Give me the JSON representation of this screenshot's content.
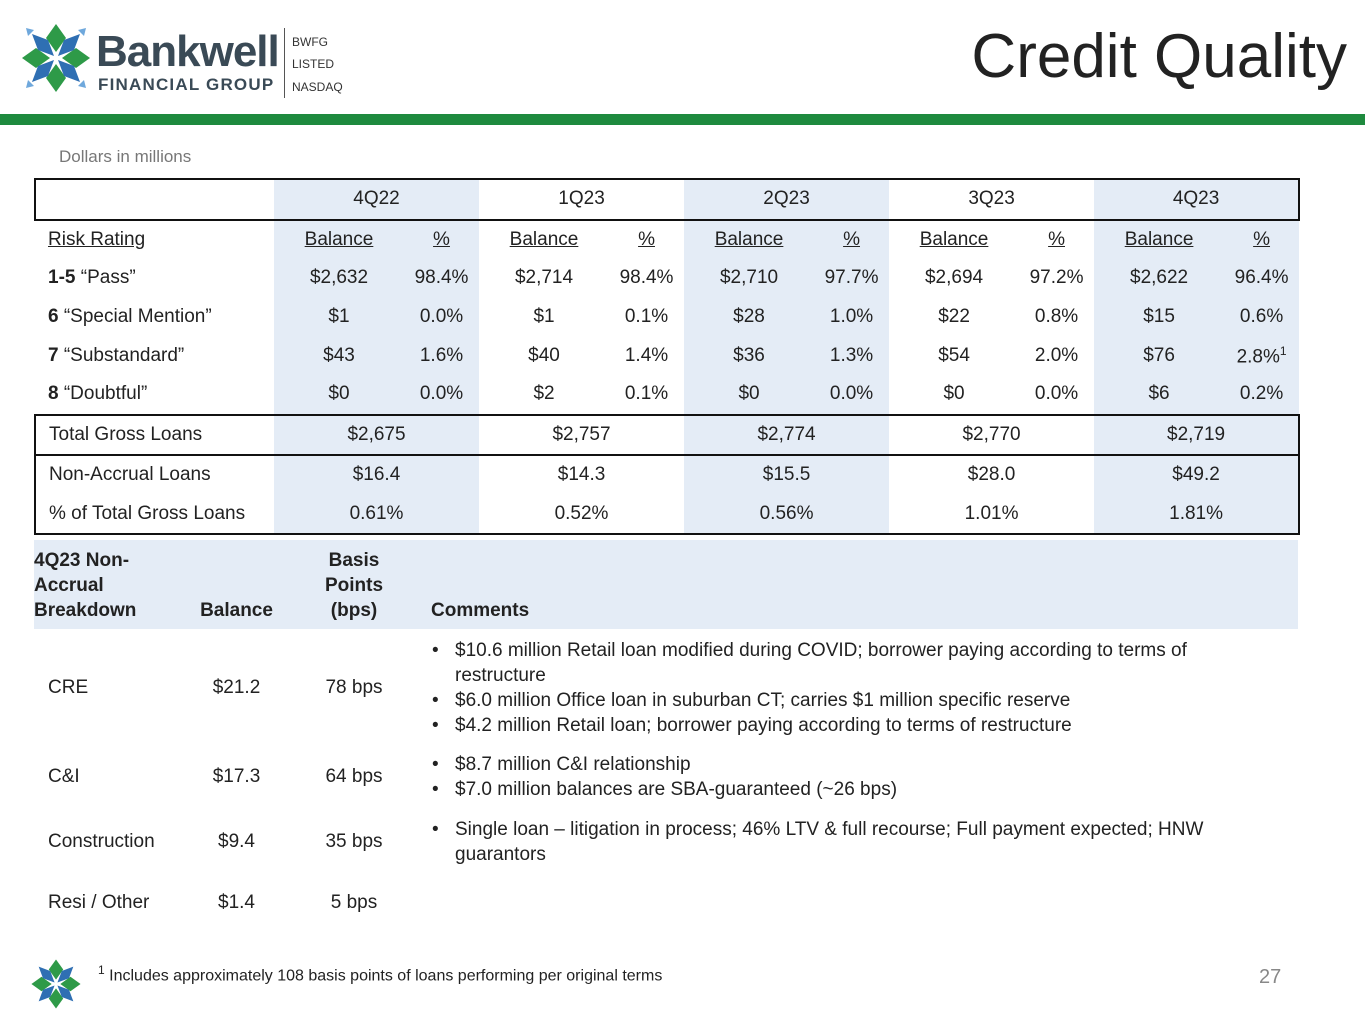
{
  "header": {
    "logo_name": "Bankwell",
    "logo_sub": "FINANCIAL GROUP",
    "ticker_lines": [
      "BWFG",
      "LISTED",
      "NASDAQ"
    ],
    "title": "Credit Quality"
  },
  "units_note": "Dollars in millions",
  "quality_table": {
    "quarters": [
      "4Q22",
      "1Q23",
      "2Q23",
      "3Q23",
      "4Q23"
    ],
    "subheader": {
      "label": "Risk Rating",
      "balance": "Balance",
      "pct": "%"
    },
    "rows": [
      {
        "code": "1-5",
        "name": " “Pass”",
        "cells": [
          "$2,632",
          "98.4%",
          "$2,714",
          "98.4%",
          "$2,710",
          "97.7%",
          "$2,694",
          "97.2%",
          "$2,622",
          "96.4%"
        ]
      },
      {
        "code": "6",
        "name": " “Special Mention”",
        "cells": [
          "$1",
          "0.0%",
          "$1",
          "0.1%",
          "$28",
          "1.0%",
          "$22",
          "0.8%",
          "$15",
          "0.6%"
        ]
      },
      {
        "code": "7",
        "name": " “Substandard”",
        "cells": [
          "$43",
          "1.6%",
          "$40",
          "1.4%",
          "$36",
          "1.3%",
          "$54",
          "2.0%",
          "$76",
          "2.8%"
        ],
        "last_sup": "1"
      },
      {
        "code": "8",
        "name": " “Doubtful”",
        "cells": [
          "$0",
          "0.0%",
          "$2",
          "0.1%",
          "$0",
          "0.0%",
          "$0",
          "0.0%",
          "$6",
          "0.2%"
        ]
      }
    ],
    "total": {
      "label": "Total Gross Loans",
      "values": [
        "$2,675",
        "$2,757",
        "$2,774",
        "$2,770",
        "$2,719"
      ]
    },
    "non_accrual": {
      "label": "Non-Accrual Loans",
      "values": [
        "$16.4",
        "$14.3",
        "$15.5",
        "$28.0",
        "$49.2"
      ]
    },
    "pct_total": {
      "label": "% of Total Gross Loans",
      "values": [
        "0.61%",
        "0.52%",
        "0.56%",
        "1.01%",
        "1.81%"
      ]
    }
  },
  "breakdown": {
    "headers": {
      "category": "4Q23 Non-Accrual Breakdown",
      "balance": "Balance",
      "bps": "Basis Points (bps)",
      "comments": "Comments"
    },
    "rows": [
      {
        "category": "CRE",
        "balance": "$21.2",
        "bps": "78 bps",
        "comments": [
          "$10.6 million Retail loan modified during COVID; borrower paying according to terms of restructure",
          "$6.0 million Office loan in suburban CT; carries $1 million specific reserve",
          "$4.2 million Retail loan; borrower paying according to terms of restructure"
        ]
      },
      {
        "category": "C&I",
        "balance": "$17.3",
        "bps": "64 bps",
        "comments": [
          "$8.7 million C&I relationship",
          "$7.0 million balances are SBA-guaranteed (~26 bps)"
        ]
      },
      {
        "category": "Construction",
        "balance": "$9.4",
        "bps": "35 bps",
        "comments": [
          "Single loan – litigation in process; 46% LTV & full recourse; Full payment expected; HNW guarantors"
        ]
      },
      {
        "category": "Resi / Other",
        "balance": "$1.4",
        "bps": "5 bps",
        "comments": []
      }
    ]
  },
  "footnote": {
    "marker": "1",
    "text": "Includes approximately 108 basis points of loans performing per original terms"
  },
  "page_number": "27",
  "colors": {
    "accent_green": "#1e8a3e",
    "shade_blue": "#e4ecf6",
    "logo_blue": "#2f6fb3",
    "logo_green": "#2e9a48"
  }
}
